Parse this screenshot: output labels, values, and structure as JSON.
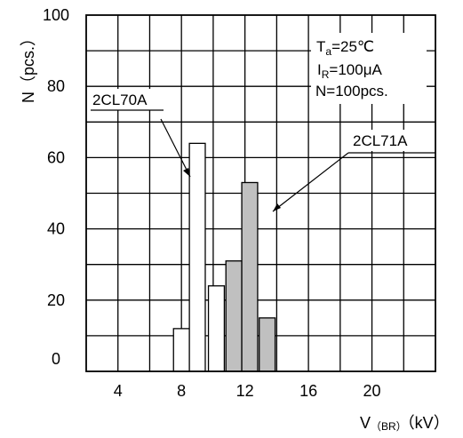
{
  "chart_data": {
    "type": "bar",
    "ylabel": "N（pcs.）",
    "xlabel": {
      "main": "V",
      "sub": "（BR）",
      "unit": "（kV）"
    },
    "xlim": [
      2,
      24
    ],
    "ylim": [
      0,
      100
    ],
    "x_ticks": [
      "4",
      "8",
      "12",
      "16",
      "20"
    ],
    "y_ticks": [
      "100",
      "80",
      "60",
      "40",
      "20",
      "0"
    ],
    "conditions": {
      "ta": {
        "T": "T",
        "sub": "a",
        "rest": "=25℃"
      },
      "ir": {
        "I": "I",
        "sub": "R",
        "rest": "=100μA"
      },
      "n": "N=100pcs."
    },
    "series": [
      {
        "name": "2CL70A",
        "color": "#ffffff",
        "bars": [
          {
            "x0": 7.5,
            "x1": 8.5,
            "value": 12
          },
          {
            "x0": 8.5,
            "x1": 9.5,
            "value": 64
          },
          {
            "x0": 9.7,
            "x1": 10.7,
            "value": 24
          }
        ]
      },
      {
        "name": "2CL71A",
        "color": "#c0c0c0",
        "bars": [
          {
            "x0": 10.8,
            "x1": 11.8,
            "value": 31
          },
          {
            "x0": 11.8,
            "x1": 12.8,
            "value": 53
          },
          {
            "x0": 12.9,
            "x1": 13.9,
            "value": 15
          }
        ]
      }
    ]
  }
}
